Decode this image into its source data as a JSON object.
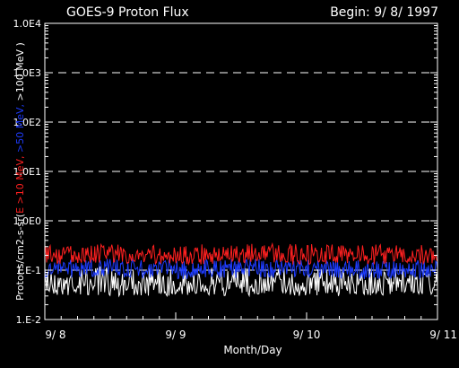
{
  "chart_data": {
    "type": "line",
    "title": "GOES-9 Proton Flux",
    "subtitle": "Begin: 9/ 8/ 1997",
    "xlabel": "Month/Day",
    "ylabel": {
      "prefix": "Protons/cm2-s-sr(",
      "parts": [
        {
          "text": "E >10 MeV, ",
          "color": "#ff2020"
        },
        {
          "text": ">50 MeV, ",
          "color": "#1e3cff"
        },
        {
          "text": ">100 MeV",
          "color": "#ffffff"
        }
      ],
      "suffix": " )"
    },
    "yscale": "log",
    "ylim": [
      0.01,
      10000
    ],
    "yticks": [
      {
        "value": 0.01,
        "label": "1.E-2"
      },
      {
        "value": 0.1,
        "label": "1.E-1"
      },
      {
        "value": 1,
        "label": "1.0E0"
      },
      {
        "value": 10,
        "label": "1.0E1"
      },
      {
        "value": 100,
        "label": "1.0E2"
      },
      {
        "value": 1000,
        "label": "1.0E3"
      },
      {
        "value": 10000,
        "label": "1.0E4"
      }
    ],
    "xlim": [
      "1997-09-08",
      "1997-09-11"
    ],
    "xticks": [
      {
        "value": "1997-09-08",
        "label": "9/ 8"
      },
      {
        "value": "1997-09-09",
        "label": "9/ 9"
      },
      {
        "value": "1997-09-10",
        "label": "9/ 10"
      },
      {
        "value": "1997-09-11",
        "label": "9/ 11"
      }
    ],
    "grid": "dashed-major-y",
    "series": [
      {
        "name": "E >10 MeV",
        "color": "#ff2020",
        "x": [
          "1997-09-08",
          "1997-09-08 12:00",
          "1997-09-09",
          "1997-09-09 12:00",
          "1997-09-10",
          "1997-09-10 12:00",
          "1997-09-11"
        ],
        "values": [
          0.19,
          0.21,
          0.19,
          0.2,
          0.2,
          0.19,
          0.2
        ],
        "min": [
          0.13,
          0.14,
          0.13,
          0.13,
          0.13,
          0.13,
          0.13
        ],
        "max": [
          0.32,
          0.35,
          0.33,
          0.34,
          0.34,
          0.33,
          0.33
        ]
      },
      {
        "name": ">50 MeV",
        "color": "#1e3cff",
        "x": [
          "1997-09-08",
          "1997-09-08 12:00",
          "1997-09-09",
          "1997-09-09 12:00",
          "1997-09-10",
          "1997-09-10 12:00",
          "1997-09-11"
        ],
        "values": [
          0.11,
          0.11,
          0.1,
          0.11,
          0.11,
          0.1,
          0.11
        ],
        "min": [
          0.07,
          0.07,
          0.065,
          0.07,
          0.07,
          0.065,
          0.07
        ],
        "max": [
          0.16,
          0.17,
          0.16,
          0.17,
          0.17,
          0.16,
          0.17
        ]
      },
      {
        "name": ">100 MeV",
        "color": "#ffffff",
        "x": [
          "1997-09-08",
          "1997-09-08 12:00",
          "1997-09-09",
          "1997-09-09 12:00",
          "1997-09-10",
          "1997-09-10 12:00",
          "1997-09-11"
        ],
        "values": [
          0.055,
          0.055,
          0.05,
          0.055,
          0.055,
          0.05,
          0.055
        ],
        "min": [
          0.03,
          0.03,
          0.03,
          0.03,
          0.03,
          0.03,
          0.03
        ],
        "max": [
          0.11,
          0.12,
          0.11,
          0.12,
          0.12,
          0.11,
          0.12
        ]
      }
    ]
  }
}
